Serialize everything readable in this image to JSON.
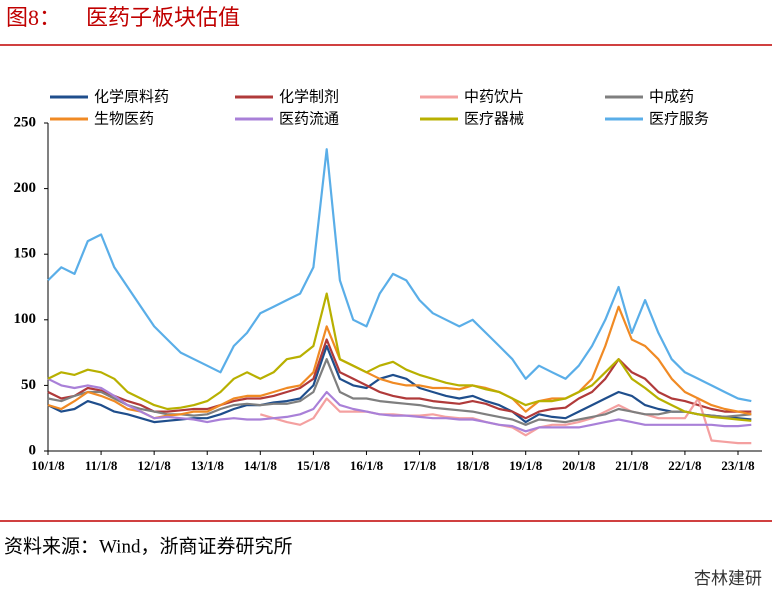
{
  "chart_data": {
    "type": "line",
    "figure_label": "图8：",
    "title": "医药子板块估值",
    "source": "资料来源：Wind，浙商证券研究所",
    "watermark": "杏林建研",
    "categories": [
      "10/1/8",
      null,
      null,
      null,
      "11/1/8",
      null,
      null,
      null,
      "12/1/8",
      null,
      null,
      null,
      "13/1/8",
      null,
      null,
      null,
      "14/1/8",
      null,
      null,
      null,
      "15/1/8",
      null,
      null,
      null,
      "16/1/8",
      null,
      null,
      null,
      "17/1/8",
      null,
      null,
      null,
      "18/1/8",
      null,
      null,
      null,
      "19/1/8",
      null,
      null,
      null,
      "20/1/8",
      null,
      null,
      null,
      "21/1/8",
      null,
      null,
      null,
      "22/1/8",
      null,
      null,
      null,
      "23/1/8",
      null
    ],
    "ylim": [
      0,
      250
    ],
    "yticks": [
      0,
      50,
      100,
      150,
      200,
      250
    ],
    "grid": false,
    "series": [
      {
        "name": "化学原料药",
        "color": "#1f4e8c",
        "values": [
          35,
          30,
          32,
          38,
          35,
          30,
          28,
          25,
          22,
          23,
          24,
          25,
          25,
          28,
          32,
          35,
          35,
          37,
          38,
          40,
          50,
          80,
          55,
          50,
          48,
          55,
          58,
          55,
          48,
          45,
          42,
          40,
          42,
          38,
          35,
          30,
          22,
          28,
          26,
          25,
          30,
          35,
          40,
          45,
          42,
          35,
          32,
          30,
          30,
          28,
          27,
          26,
          25,
          24
        ]
      },
      {
        "name": "化学制剂",
        "color": "#b03a3a",
        "values": [
          45,
          40,
          42,
          48,
          46,
          42,
          38,
          35,
          30,
          30,
          31,
          32,
          32,
          35,
          38,
          40,
          40,
          42,
          45,
          48,
          55,
          85,
          60,
          55,
          50,
          45,
          42,
          40,
          40,
          38,
          37,
          36,
          38,
          36,
          32,
          30,
          25,
          30,
          32,
          33,
          40,
          45,
          55,
          70,
          60,
          55,
          45,
          40,
          38,
          35,
          32,
          30,
          30,
          30
        ]
      },
      {
        "name": "中药饮片",
        "color": "#f4a0a0",
        "values": [
          null,
          null,
          null,
          null,
          null,
          null,
          null,
          null,
          null,
          null,
          null,
          null,
          null,
          null,
          null,
          null,
          28,
          25,
          22,
          20,
          25,
          40,
          30,
          30,
          30,
          28,
          28,
          27,
          27,
          28,
          26,
          25,
          25,
          22,
          20,
          18,
          12,
          18,
          20,
          20,
          22,
          25,
          30,
          35,
          30,
          28,
          25,
          25,
          25,
          40,
          8,
          7,
          6,
          6
        ]
      },
      {
        "name": "中成药",
        "color": "#7f7f7f",
        "values": [
          40,
          38,
          42,
          45,
          45,
          40,
          35,
          32,
          30,
          28,
          28,
          27,
          28,
          32,
          35,
          36,
          35,
          36,
          36,
          38,
          45,
          70,
          45,
          40,
          40,
          38,
          37,
          36,
          35,
          33,
          32,
          31,
          30,
          28,
          26,
          24,
          20,
          24,
          23,
          22,
          24,
          26,
          28,
          32,
          30,
          28,
          28,
          30,
          30,
          28,
          27,
          26,
          27,
          28
        ]
      },
      {
        "name": "生物医药",
        "color": "#f08a24",
        "values": [
          35,
          32,
          38,
          45,
          42,
          38,
          32,
          30,
          25,
          27,
          28,
          30,
          30,
          35,
          40,
          42,
          42,
          45,
          48,
          50,
          60,
          95,
          70,
          65,
          60,
          55,
          52,
          50,
          50,
          48,
          48,
          47,
          50,
          48,
          45,
          40,
          30,
          38,
          40,
          40,
          45,
          55,
          80,
          110,
          85,
          80,
          70,
          55,
          45,
          40,
          35,
          32,
          30,
          28
        ]
      },
      {
        "name": "医药流通",
        "color": "#a980d8",
        "values": [
          55,
          50,
          48,
          50,
          48,
          42,
          35,
          30,
          25,
          26,
          25,
          24,
          22,
          24,
          25,
          24,
          24,
          25,
          26,
          28,
          32,
          45,
          35,
          32,
          30,
          28,
          27,
          27,
          26,
          25,
          25,
          24,
          24,
          22,
          20,
          19,
          15,
          18,
          18,
          18,
          18,
          20,
          22,
          24,
          22,
          20,
          20,
          20,
          20,
          20,
          20,
          19,
          19,
          20
        ]
      },
      {
        "name": "医疗器械",
        "color": "#b8b000",
        "values": [
          55,
          60,
          58,
          62,
          60,
          55,
          45,
          40,
          35,
          32,
          33,
          35,
          38,
          45,
          55,
          60,
          55,
          60,
          70,
          72,
          80,
          120,
          70,
          65,
          60,
          65,
          68,
          62,
          58,
          55,
          52,
          50,
          50,
          47,
          45,
          40,
          35,
          38,
          38,
          40,
          45,
          50,
          60,
          70,
          55,
          48,
          40,
          35,
          30,
          28,
          26,
          25,
          24,
          23
        ]
      },
      {
        "name": "医疗服务",
        "color": "#5aaee8",
        "values": [
          130,
          140,
          135,
          160,
          165,
          140,
          125,
          110,
          95,
          85,
          75,
          70,
          65,
          60,
          80,
          90,
          105,
          110,
          115,
          120,
          140,
          230,
          130,
          100,
          95,
          120,
          135,
          130,
          115,
          105,
          100,
          95,
          100,
          90,
          80,
          70,
          55,
          65,
          60,
          55,
          65,
          80,
          100,
          125,
          90,
          115,
          90,
          70,
          60,
          55,
          50,
          45,
          40,
          38
        ]
      }
    ]
  }
}
